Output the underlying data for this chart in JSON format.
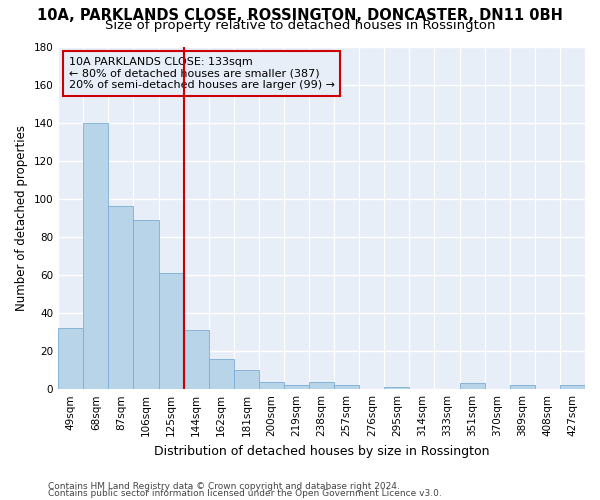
{
  "title_line1": "10A, PARKLANDS CLOSE, ROSSINGTON, DONCASTER, DN11 0BH",
  "title_line2": "Size of property relative to detached houses in Rossington",
  "xlabel": "Distribution of detached houses by size in Rossington",
  "ylabel": "Number of detached properties",
  "footer_line1": "Contains HM Land Registry data © Crown copyright and database right 2024.",
  "footer_line2": "Contains public sector information licensed under the Open Government Licence v3.0.",
  "categories": [
    "49sqm",
    "68sqm",
    "87sqm",
    "106sqm",
    "125sqm",
    "144sqm",
    "162sqm",
    "181sqm",
    "200sqm",
    "219sqm",
    "238sqm",
    "257sqm",
    "276sqm",
    "295sqm",
    "314sqm",
    "333sqm",
    "351sqm",
    "370sqm",
    "389sqm",
    "408sqm",
    "427sqm"
  ],
  "values": [
    32,
    140,
    96,
    89,
    61,
    31,
    16,
    10,
    4,
    2,
    4,
    2,
    0,
    1,
    0,
    0,
    3,
    0,
    2,
    0,
    2
  ],
  "bar_color": "#b8d4e8",
  "bar_edge_color": "#7aadd4",
  "vline_x_idx": 4.5,
  "vline_color": "#cc0000",
  "annotation_text": "10A PARKLANDS CLOSE: 133sqm\n← 80% of detached houses are smaller (387)\n20% of semi-detached houses are larger (99) →",
  "annotation_box_color": "#cc0000",
  "ylim": [
    0,
    180
  ],
  "yticks": [
    0,
    20,
    40,
    60,
    80,
    100,
    120,
    140,
    160,
    180
  ],
  "background_color": "#ffffff",
  "plot_bg_color": "#e8eef8",
  "grid_color": "#ffffff",
  "title1_fontsize": 10.5,
  "title2_fontsize": 9.5,
  "ylabel_fontsize": 8.5,
  "xlabel_fontsize": 9,
  "tick_fontsize": 7.5,
  "annot_fontsize": 8,
  "footer_fontsize": 6.5
}
